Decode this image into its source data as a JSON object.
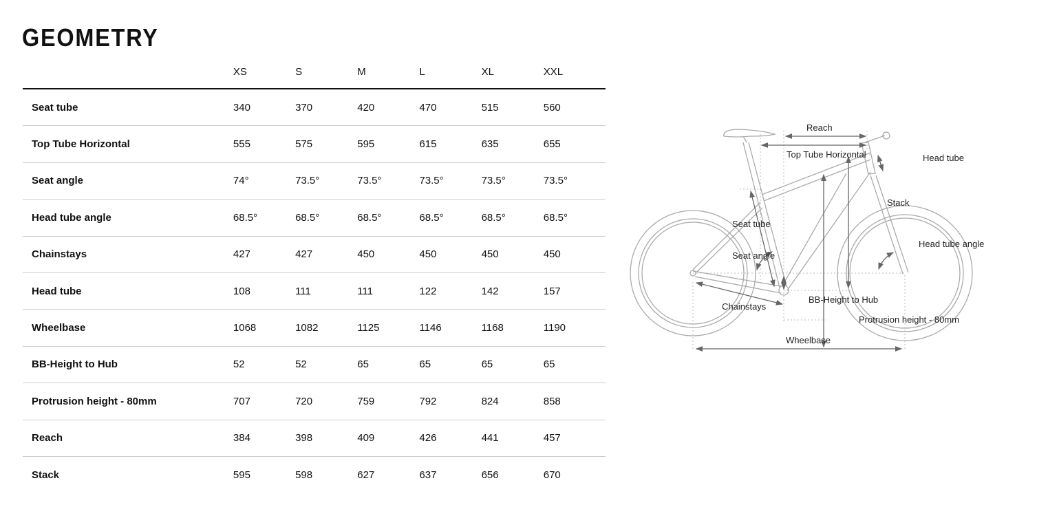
{
  "title": "GEOMETRY",
  "sizes": [
    "XS",
    "S",
    "M",
    "L",
    "XL",
    "XXL"
  ],
  "rows": [
    {
      "label": "Seat tube",
      "values": [
        "340",
        "370",
        "420",
        "470",
        "515",
        "560"
      ]
    },
    {
      "label": "Top Tube Horizontal",
      "values": [
        "555",
        "575",
        "595",
        "615",
        "635",
        "655"
      ]
    },
    {
      "label": "Seat angle",
      "values": [
        "74°",
        "73.5°",
        "73.5°",
        "73.5°",
        "73.5°",
        "73.5°"
      ]
    },
    {
      "label": "Head tube angle",
      "values": [
        "68.5°",
        "68.5°",
        "68.5°",
        "68.5°",
        "68.5°",
        "68.5°"
      ]
    },
    {
      "label": "Chainstays",
      "values": [
        "427",
        "427",
        "450",
        "450",
        "450",
        "450"
      ]
    },
    {
      "label": "Head tube",
      "values": [
        "108",
        "111",
        "111",
        "122",
        "142",
        "157"
      ]
    },
    {
      "label": "Wheelbase",
      "values": [
        "1068",
        "1082",
        "1125",
        "1146",
        "1168",
        "1190"
      ]
    },
    {
      "label": "BB-Height to Hub",
      "values": [
        "52",
        "52",
        "65",
        "65",
        "65",
        "65"
      ]
    },
    {
      "label": "Protrusion height - 80mm",
      "values": [
        "707",
        "720",
        "759",
        "792",
        "824",
        "858"
      ]
    },
    {
      "label": "Reach",
      "values": [
        "384",
        "398",
        "409",
        "426",
        "441",
        "457"
      ]
    },
    {
      "label": "Stack",
      "values": [
        "595",
        "598",
        "627",
        "637",
        "656",
        "670"
      ]
    }
  ],
  "diagram": {
    "reach": "Reach",
    "top_tube": "Top Tube Horizontal",
    "head_tube": "Head tube",
    "stack": "Stack",
    "seat_tube": "Seat tube",
    "head_tube_angle": "Head tube angle",
    "seat_angle": "Seat angle",
    "bb_height": "BB-Height to Hub",
    "chainstays": "Chainstays",
    "protrusion": "Protrusion height - 80mm",
    "wheelbase": "Wheelbase"
  },
  "colors": {
    "text": "#111111",
    "divider": "#cccccc",
    "bike": "#aaaaaa",
    "arrow": "#666666"
  }
}
